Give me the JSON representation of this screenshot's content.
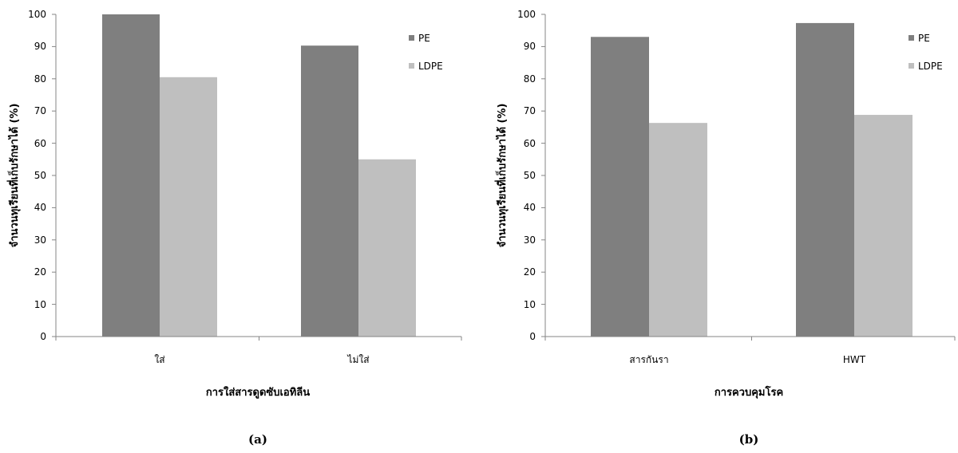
{
  "chart_data": [
    {
      "type": "bar",
      "panel_label": "(a)",
      "categories": [
        "ใส่",
        "ไม่ใส่"
      ],
      "series": [
        {
          "name": "PE",
          "values": [
            100,
            90.3
          ]
        },
        {
          "name": "LDPE",
          "values": [
            80.5,
            55
          ]
        }
      ],
      "xlabel": "การใส่สารดูดซับเอทิลีน",
      "ylabel": "จำนวนทุเรียนที่เก็บรักษาได้ (%)",
      "ylim": [
        0,
        100
      ],
      "yticks": [
        "0",
        "10",
        "20",
        "30",
        "40",
        "50",
        "60",
        "70",
        "80",
        "90",
        "100"
      ],
      "grid": false,
      "legend": "top-right"
    },
    {
      "type": "bar",
      "panel_label": "(b)",
      "categories": [
        "สารกันรา",
        "HWT"
      ],
      "series": [
        {
          "name": "PE",
          "values": [
            93,
            97.3
          ]
        },
        {
          "name": "LDPE",
          "values": [
            66.3,
            68.8
          ]
        }
      ],
      "xlabel": "การควบคุมโรค",
      "ylabel": "จำนวนทุเรียนที่เก็บรักษาได้ (%)",
      "ylim": [
        0,
        100
      ],
      "yticks": [
        "0",
        "10",
        "20",
        "30",
        "40",
        "50",
        "60",
        "70",
        "80",
        "90",
        "100"
      ],
      "grid": false,
      "legend": "top-right"
    }
  ],
  "colors": {
    "PE": "#7f7f7f",
    "LDPE": "#bfbfbf",
    "axis": "#868686"
  }
}
